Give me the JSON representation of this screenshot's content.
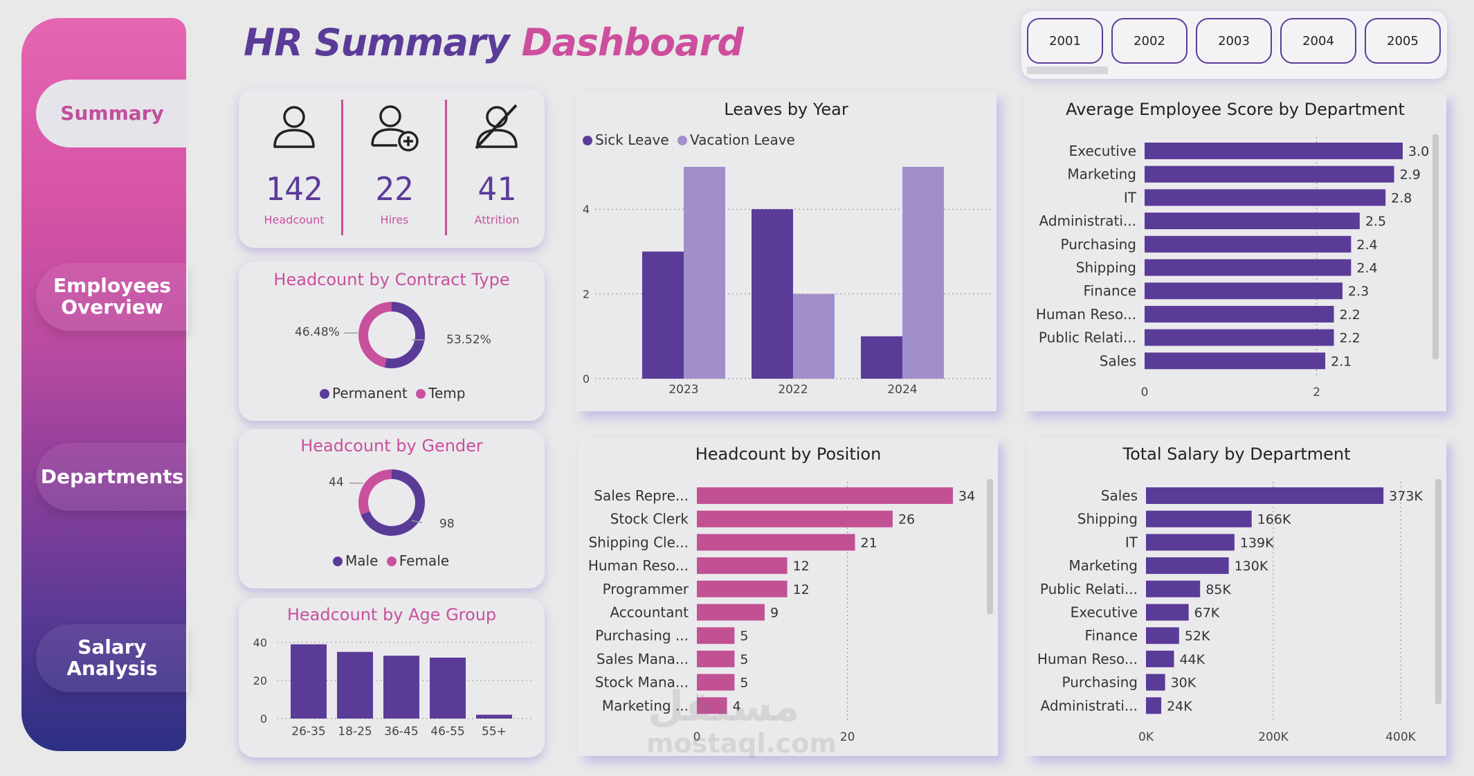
{
  "nav": {
    "items": [
      {
        "label": "Summary",
        "active": true
      },
      {
        "label": "Employees\nOverview",
        "active": false
      },
      {
        "label": "Departments",
        "active": false
      },
      {
        "label": "Salary Analysis",
        "active": false
      }
    ]
  },
  "title": {
    "part1": "HR Summary",
    "part2": "Dashboard"
  },
  "slicer": {
    "years": [
      "2001",
      "2002",
      "2003",
      "2004",
      "2005"
    ]
  },
  "kpis": [
    {
      "value": "142",
      "label": "Headcount",
      "icon": "person-icon"
    },
    {
      "value": "22",
      "label": "Hires",
      "icon": "person-add-icon"
    },
    {
      "value": "41",
      "label": "Attrition",
      "icon": "person-off-icon"
    }
  ],
  "colors": {
    "purple": "#5b3b98",
    "light_purple": "#a18fcb",
    "pink": "#c8509d",
    "pink_bar": "#c25194"
  },
  "chart_data": [
    {
      "id": "contract",
      "type": "pie",
      "title": "Headcount by Contract Type",
      "labels": [
        "Permanent",
        "Temp"
      ],
      "values": [
        53.52,
        46.48
      ],
      "data_labels": [
        "53.52%",
        "46.48%"
      ],
      "colors": [
        "#5b3b98",
        "#c8509d"
      ]
    },
    {
      "id": "gender",
      "type": "pie",
      "title": "Headcount by Gender",
      "labels": [
        "Male",
        "Female"
      ],
      "values": [
        98,
        44
      ],
      "data_labels": [
        "98",
        "44"
      ],
      "colors": [
        "#5b3b98",
        "#c8509d"
      ]
    },
    {
      "id": "age",
      "type": "bar",
      "title": "Headcount by Age Group",
      "categories": [
        "26-35",
        "18-25",
        "36-45",
        "46-55",
        "55+"
      ],
      "values": [
        39,
        35,
        33,
        32,
        2
      ],
      "ylim": [
        0,
        40
      ],
      "yticks": [
        0,
        20,
        40
      ]
    },
    {
      "id": "leaves",
      "type": "bar",
      "title": "Leaves by Year",
      "categories": [
        "2023",
        "2022",
        "2024"
      ],
      "series": [
        {
          "name": "Sick Leave",
          "values": [
            3,
            4,
            1
          ],
          "color": "#5b3b98"
        },
        {
          "name": "Vacation Leave",
          "values": [
            5,
            2,
            5
          ],
          "color": "#a18fcb"
        }
      ],
      "ylim": [
        0,
        5
      ],
      "yticks": [
        0,
        2,
        4
      ]
    },
    {
      "id": "score",
      "type": "bar",
      "title": "Average Employee Score by Department",
      "categories": [
        "Executive",
        "Marketing",
        "IT",
        "Administrati...",
        "Purchasing",
        "Shipping",
        "Finance",
        "Human Reso...",
        "Public Relati...",
        "Sales"
      ],
      "values": [
        3.0,
        2.9,
        2.8,
        2.5,
        2.4,
        2.4,
        2.3,
        2.2,
        2.2,
        2.1
      ],
      "data_labels": [
        "3.0",
        "2.9",
        "2.8",
        "2.5",
        "2.4",
        "2.4",
        "2.3",
        "2.2",
        "2.2",
        "2.1"
      ],
      "xlim": [
        0,
        3
      ],
      "xticks": [
        0,
        2
      ]
    },
    {
      "id": "position",
      "type": "bar",
      "title": "Headcount by Position",
      "categories": [
        "Sales Repre...",
        "Stock Clerk",
        "Shipping Cle...",
        "Human Reso...",
        "Programmer",
        "Accountant",
        "Purchasing ...",
        "Sales Mana...",
        "Stock Mana...",
        "Marketing ..."
      ],
      "values": [
        34,
        26,
        21,
        12,
        12,
        9,
        5,
        5,
        5,
        4
      ],
      "xlim": [
        0,
        34
      ],
      "xticks": [
        0,
        20
      ]
    },
    {
      "id": "salary",
      "type": "bar",
      "title": "Total Salary by Department",
      "categories": [
        "Sales",
        "Shipping",
        "IT",
        "Marketing",
        "Public Relati...",
        "Executive",
        "Finance",
        "Human Reso...",
        "Purchasing",
        "Administrati..."
      ],
      "values": [
        373,
        166,
        139,
        130,
        85,
        67,
        52,
        44,
        30,
        24
      ],
      "data_labels": [
        "373K",
        "166K",
        "139K",
        "130K",
        "85K",
        "67K",
        "52K",
        "44K",
        "30K",
        "24K"
      ],
      "xlim": [
        0,
        400
      ],
      "xticks": [
        "0K",
        "200K",
        "400K"
      ]
    }
  ],
  "watermark": {
    "arabic": "مستقل",
    "latin": "mostaql.com"
  }
}
